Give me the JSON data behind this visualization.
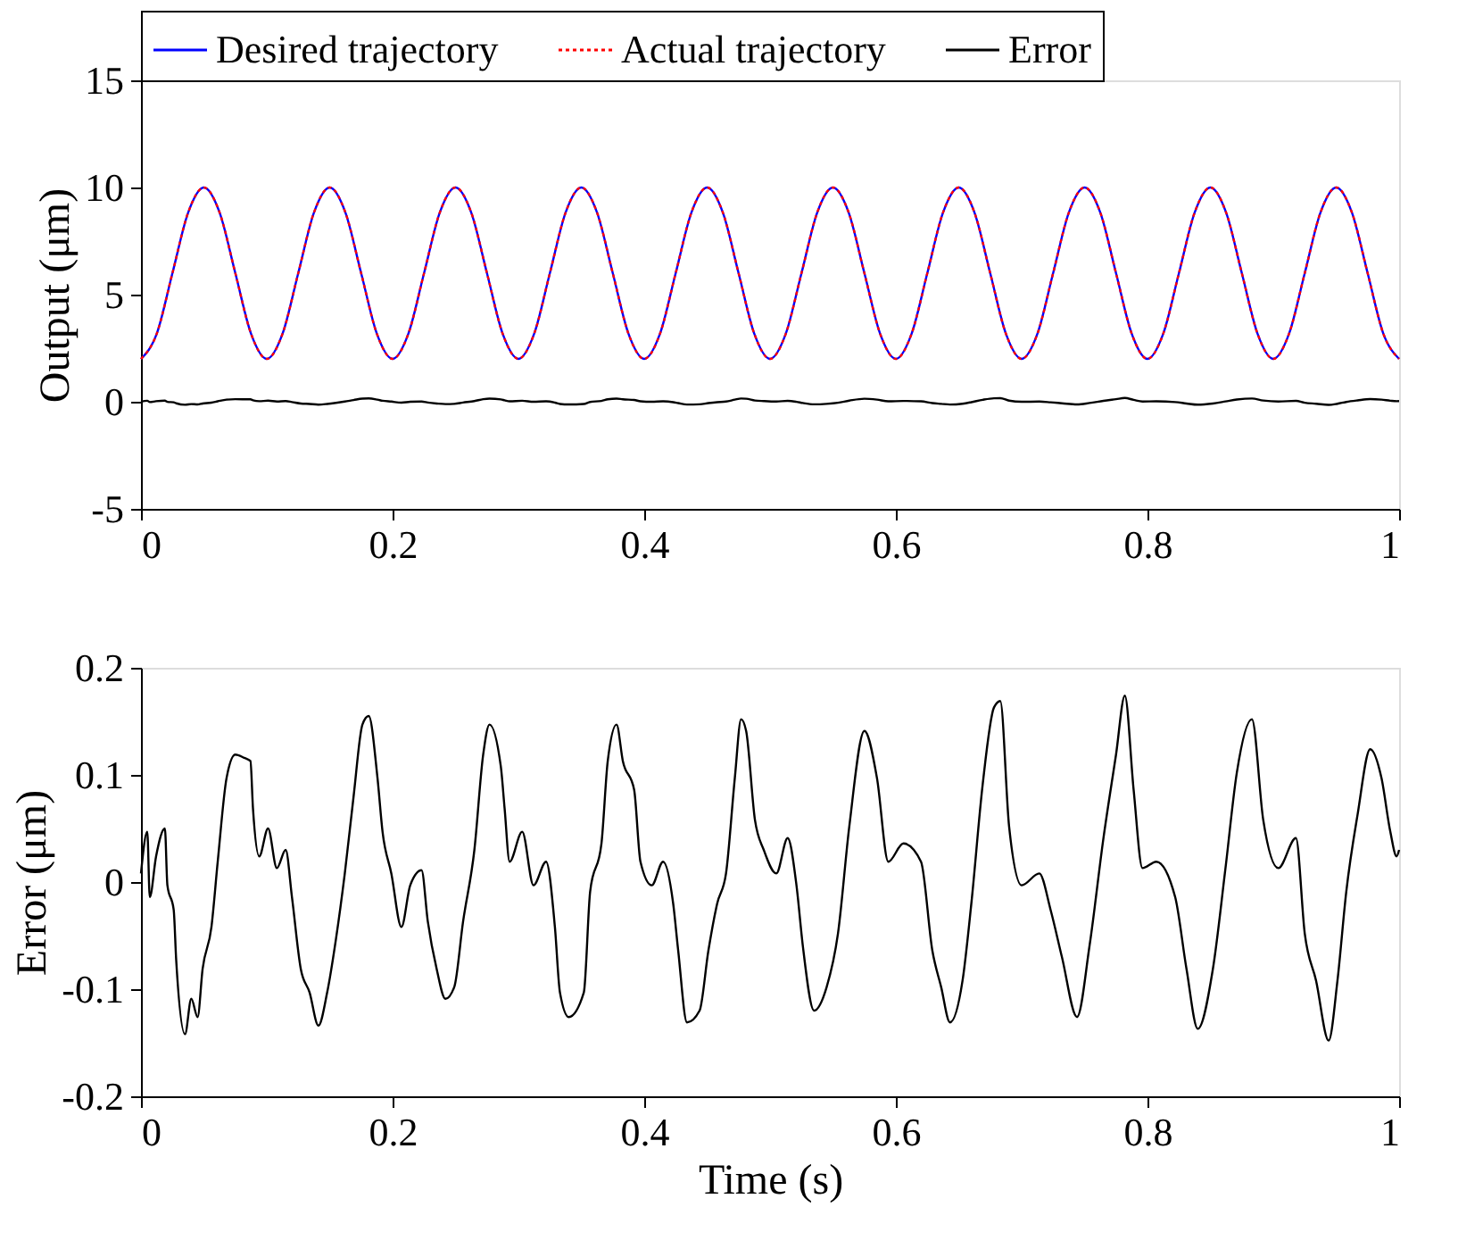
{
  "chart_data": [
    {
      "type": "line",
      "ylabel": "Output (μm)",
      "legend": "top",
      "xlim": [
        0,
        1
      ],
      "xticks": [
        0,
        0.2,
        0.4,
        0.6,
        0.8,
        1
      ],
      "ylim": [
        -5,
        15
      ],
      "yticks": [
        -5,
        0,
        5,
        10,
        15
      ],
      "x": [
        0,
        0.0125,
        0.025,
        0.0375,
        0.05,
        0.0625,
        0.075,
        0.0875,
        0.1,
        0.1125,
        0.125,
        0.1375,
        0.15,
        0.1625,
        0.175,
        0.1875,
        0.2,
        0.2125,
        0.225,
        0.2375,
        0.25,
        0.2625,
        0.275,
        0.2875,
        0.3,
        0.3125,
        0.325,
        0.3375,
        0.35,
        0.3625,
        0.375,
        0.3875,
        0.4,
        0.4125,
        0.425,
        0.4375,
        0.45,
        0.4625,
        0.475,
        0.4875,
        0.5,
        0.5125,
        0.525,
        0.5375,
        0.55,
        0.5625,
        0.575,
        0.5875,
        0.6,
        0.6125,
        0.625,
        0.6375,
        0.65,
        0.6625,
        0.675,
        0.6875,
        0.7,
        0.7125,
        0.725,
        0.7375,
        0.75,
        0.7625,
        0.775,
        0.7875,
        0.8,
        0.8125,
        0.825,
        0.8375,
        0.85,
        0.8625,
        0.875,
        0.8875,
        0.9,
        0.9125,
        0.925,
        0.9375,
        0.95,
        0.9625,
        0.975,
        0.9875,
        1
      ],
      "series": [
        {
          "name": "Desired trajectory",
          "color": "#0000ff",
          "line_style": "solid",
          "values": [
            2,
            3.17,
            6,
            8.83,
            10,
            8.83,
            6,
            3.17,
            2,
            3.17,
            6,
            8.83,
            10,
            8.83,
            6,
            3.17,
            2,
            3.17,
            6,
            8.83,
            10,
            8.83,
            6,
            3.17,
            2,
            3.17,
            6,
            8.83,
            10,
            8.83,
            6,
            3.17,
            2,
            3.17,
            6,
            8.83,
            10,
            8.83,
            6,
            3.17,
            2,
            3.17,
            6,
            8.83,
            10,
            8.83,
            6,
            3.17,
            2,
            3.17,
            6,
            8.83,
            10,
            8.83,
            6,
            3.17,
            2,
            3.17,
            6,
            8.83,
            10,
            8.83,
            6,
            3.17,
            2,
            3.17,
            6,
            8.83,
            10,
            8.83,
            6,
            3.17,
            2,
            3.17,
            6,
            8.83,
            10,
            8.83,
            6,
            3.17,
            2
          ]
        },
        {
          "name": "Actual trajectory",
          "color": "#ff0000",
          "line_style": "dotted",
          "values": [
            2,
            3.17,
            6,
            8.83,
            10,
            8.83,
            6,
            3.17,
            2,
            3.17,
            6,
            8.83,
            10,
            8.83,
            6,
            3.17,
            2,
            3.17,
            6,
            8.83,
            10,
            8.83,
            6,
            3.17,
            2,
            3.17,
            6,
            8.83,
            10,
            8.83,
            6,
            3.17,
            2,
            3.17,
            6,
            8.83,
            10,
            8.83,
            6,
            3.17,
            2,
            3.17,
            6,
            8.83,
            10,
            8.83,
            6,
            3.17,
            2,
            3.17,
            6,
            8.83,
            10,
            8.83,
            6,
            3.17,
            2,
            3.17,
            6,
            8.83,
            10,
            8.83,
            6,
            3.17,
            2,
            3.17,
            6,
            8.83,
            10,
            8.83,
            6,
            3.17,
            2,
            3.17,
            6,
            8.83,
            10,
            8.83,
            6,
            3.17,
            2
          ]
        },
        {
          "name": "Error",
          "color": "#000000",
          "line_style": "solid",
          "x": [
            0,
            0.005,
            0.007,
            0.012,
            0.019,
            0.021,
            0.026,
            0.028,
            0.035,
            0.04,
            0.045,
            0.049,
            0.056,
            0.061,
            0.068,
            0.075,
            0.082,
            0.087,
            0.089,
            0.094,
            0.101,
            0.108,
            0.115,
            0.12,
            0.127,
            0.134,
            0.141,
            0.148,
            0.155,
            0.162,
            0.169,
            0.176,
            0.181,
            0.188,
            0.192,
            0.199,
            0.207,
            0.214,
            0.223,
            0.228,
            0.235,
            0.242,
            0.249,
            0.256,
            0.265,
            0.272,
            0.277,
            0.286,
            0.289,
            0.293,
            0.303,
            0.312,
            0.322,
            0.329,
            0.333,
            0.34,
            0.352,
            0.357,
            0.366,
            0.371,
            0.378,
            0.383,
            0.392,
            0.397,
            0.406,
            0.415,
            0.423,
            0.427,
            0.434,
            0.444,
            0.451,
            0.458,
            0.465,
            0.472,
            0.477,
            0.481,
            0.488,
            0.495,
            0.505,
            0.514,
            0.521,
            0.526,
            0.535,
            0.545,
            0.554,
            0.563,
            0.575,
            0.585,
            0.594,
            0.606,
            0.62,
            0.629,
            0.636,
            0.643,
            0.653,
            0.66,
            0.669,
            0.678,
            0.683,
            0.69,
            0.7,
            0.714,
            0.723,
            0.732,
            0.744,
            0.754,
            0.765,
            0.775,
            0.782,
            0.789,
            0.796,
            0.807,
            0.822,
            0.831,
            0.84,
            0.852,
            0.862,
            0.871,
            0.883,
            0.892,
            0.904,
            0.918,
            0.925,
            0.934,
            0.944,
            0.951,
            0.958,
            0.967,
            0.977,
            0.986,
            0.993,
            0.998,
            1
          ],
          "values": [
            0.008,
            0.047,
            -0.014,
            0.024,
            0.05,
            -0.003,
            -0.026,
            -0.073,
            -0.142,
            -0.109,
            -0.126,
            -0.081,
            -0.042,
            0.019,
            0.097,
            0.119,
            0.116,
            0.113,
            0.069,
            0.024,
            0.05,
            0.013,
            0.03,
            -0.014,
            -0.081,
            -0.103,
            -0.134,
            -0.103,
            -0.053,
            0.008,
            0.08,
            0.147,
            0.155,
            0.097,
            0.047,
            0.008,
            -0.042,
            -0.003,
            0.011,
            -0.037,
            -0.081,
            -0.109,
            -0.098,
            -0.037,
            0.03,
            0.119,
            0.147,
            0.108,
            0.069,
            0.019,
            0.047,
            -0.003,
            0.019,
            -0.042,
            -0.103,
            -0.126,
            -0.103,
            -0.009,
            0.036,
            0.113,
            0.147,
            0.113,
            0.086,
            0.019,
            -0.003,
            0.019,
            -0.02,
            -0.064,
            -0.131,
            -0.12,
            -0.064,
            -0.02,
            0.008,
            0.097,
            0.152,
            0.141,
            0.058,
            0.03,
            0.008,
            0.041,
            -0.003,
            -0.059,
            -0.12,
            -0.098,
            -0.048,
            0.052,
            0.141,
            0.097,
            0.019,
            0.036,
            0.019,
            -0.064,
            -0.098,
            -0.131,
            -0.092,
            -0.02,
            0.091,
            0.163,
            0.169,
            0.052,
            -0.003,
            0.008,
            -0.026,
            -0.07,
            -0.126,
            -0.059,
            0.041,
            0.119,
            0.174,
            0.086,
            0.013,
            0.019,
            -0.014,
            -0.081,
            -0.137,
            -0.081,
            0.013,
            0.102,
            0.152,
            0.058,
            0.013,
            0.041,
            -0.048,
            -0.092,
            -0.148,
            -0.092,
            -0.009,
            0.063,
            0.124,
            0.097,
            0.047,
            0.024,
            0.03
          ]
        }
      ]
    },
    {
      "type": "line",
      "xlabel": "Time (s)",
      "ylabel": "Error (μm)",
      "xlim": [
        0,
        1
      ],
      "xticks": [
        0,
        0.2,
        0.4,
        0.6,
        0.8,
        1
      ],
      "ylim": [
        -0.2,
        0.2
      ],
      "yticks": [
        -0.2,
        -0.1,
        0,
        0.1,
        0.2
      ],
      "x": [
        0,
        0.005,
        0.007,
        0.012,
        0.019,
        0.021,
        0.026,
        0.028,
        0.035,
        0.04,
        0.045,
        0.049,
        0.056,
        0.061,
        0.068,
        0.075,
        0.082,
        0.087,
        0.089,
        0.094,
        0.101,
        0.108,
        0.115,
        0.12,
        0.127,
        0.134,
        0.141,
        0.148,
        0.155,
        0.162,
        0.169,
        0.176,
        0.181,
        0.188,
        0.192,
        0.199,
        0.207,
        0.214,
        0.223,
        0.228,
        0.235,
        0.242,
        0.249,
        0.256,
        0.265,
        0.272,
        0.277,
        0.286,
        0.289,
        0.293,
        0.303,
        0.312,
        0.322,
        0.329,
        0.333,
        0.34,
        0.352,
        0.357,
        0.366,
        0.371,
        0.378,
        0.383,
        0.392,
        0.397,
        0.406,
        0.415,
        0.423,
        0.427,
        0.434,
        0.444,
        0.451,
        0.458,
        0.465,
        0.472,
        0.477,
        0.481,
        0.488,
        0.495,
        0.505,
        0.514,
        0.521,
        0.526,
        0.535,
        0.545,
        0.554,
        0.563,
        0.575,
        0.585,
        0.594,
        0.606,
        0.62,
        0.629,
        0.636,
        0.643,
        0.653,
        0.66,
        0.669,
        0.678,
        0.683,
        0.69,
        0.7,
        0.714,
        0.723,
        0.732,
        0.744,
        0.754,
        0.765,
        0.775,
        0.782,
        0.789,
        0.796,
        0.807,
        0.822,
        0.831,
        0.84,
        0.852,
        0.862,
        0.871,
        0.883,
        0.892,
        0.904,
        0.918,
        0.925,
        0.934,
        0.944,
        0.951,
        0.958,
        0.967,
        0.977,
        0.986,
        0.993,
        0.998,
        1
      ],
      "series": [
        {
          "color": "#000000",
          "line_style": "solid",
          "values": [
            0.008,
            0.047,
            -0.014,
            0.024,
            0.05,
            -0.003,
            -0.026,
            -0.073,
            -0.142,
            -0.109,
            -0.126,
            -0.081,
            -0.042,
            0.019,
            0.097,
            0.119,
            0.116,
            0.113,
            0.069,
            0.024,
            0.05,
            0.013,
            0.03,
            -0.014,
            -0.081,
            -0.103,
            -0.134,
            -0.103,
            -0.053,
            0.008,
            0.08,
            0.147,
            0.155,
            0.097,
            0.047,
            0.008,
            -0.042,
            -0.003,
            0.011,
            -0.037,
            -0.081,
            -0.109,
            -0.098,
            -0.037,
            0.03,
            0.119,
            0.147,
            0.108,
            0.069,
            0.019,
            0.047,
            -0.003,
            0.019,
            -0.042,
            -0.103,
            -0.126,
            -0.103,
            -0.009,
            0.036,
            0.113,
            0.147,
            0.113,
            0.086,
            0.019,
            -0.003,
            0.019,
            -0.02,
            -0.064,
            -0.131,
            -0.12,
            -0.064,
            -0.02,
            0.008,
            0.097,
            0.152,
            0.141,
            0.058,
            0.03,
            0.008,
            0.041,
            -0.003,
            -0.059,
            -0.12,
            -0.098,
            -0.048,
            0.052,
            0.141,
            0.097,
            0.019,
            0.036,
            0.019,
            -0.064,
            -0.098,
            -0.131,
            -0.092,
            -0.02,
            0.091,
            0.163,
            0.169,
            0.052,
            -0.003,
            0.008,
            -0.026,
            -0.07,
            -0.126,
            -0.059,
            0.041,
            0.119,
            0.174,
            0.086,
            0.013,
            0.019,
            -0.014,
            -0.081,
            -0.137,
            -0.081,
            0.013,
            0.102,
            0.152,
            0.058,
            0.013,
            0.041,
            -0.048,
            -0.092,
            -0.148,
            -0.092,
            -0.009,
            0.063,
            0.124,
            0.097,
            0.047,
            0.024,
            0.03
          ]
        }
      ]
    }
  ]
}
